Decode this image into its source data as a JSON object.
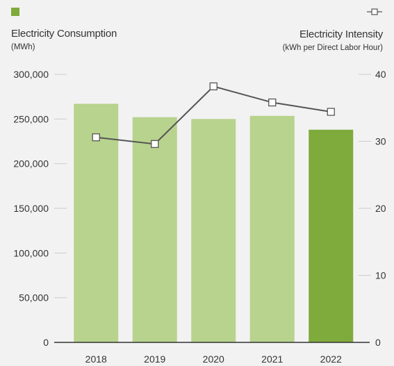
{
  "chart_data": {
    "type": "bar",
    "categories": [
      "2018",
      "2019",
      "2020",
      "2021",
      "2022"
    ],
    "series": [
      {
        "name": "Electricity Consumption",
        "type": "bar",
        "axis": "left",
        "values": [
          267000,
          252000,
          250000,
          253500,
          238000
        ],
        "colors": [
          "#b7d38d",
          "#b7d38d",
          "#b7d38d",
          "#b7d38d",
          "#7faa3c"
        ]
      },
      {
        "name": "Electricity Intensity",
        "type": "line",
        "axis": "right",
        "values": [
          30.6,
          29.6,
          38.2,
          35.8,
          34.4
        ],
        "color": "#555555"
      }
    ],
    "left_axis": {
      "title": "Electricity Consumption",
      "unit": "(MWh)",
      "ylim": [
        0,
        300000
      ],
      "ticks": [
        0,
        50000,
        100000,
        150000,
        200000,
        250000,
        300000
      ],
      "tick_labels": [
        "0",
        "50,000",
        "100,000",
        "150,000",
        "200,000",
        "250,000",
        "300,000"
      ]
    },
    "right_axis": {
      "title": "Electricity Intensity",
      "unit": "(kWh per Direct Labor Hour)",
      "ylim": [
        0,
        40
      ],
      "ticks": [
        0,
        10,
        20,
        30,
        40
      ],
      "tick_labels": [
        "0",
        "10",
        "20",
        "30",
        "40"
      ]
    },
    "grid": false,
    "legend": "top"
  },
  "colors": {
    "background": "#f2f2f2",
    "bar_light": "#b7d38d",
    "bar_highlight": "#7faa3c",
    "line": "#555555",
    "axis": "#333333",
    "tick_mark": "#cccccc"
  }
}
